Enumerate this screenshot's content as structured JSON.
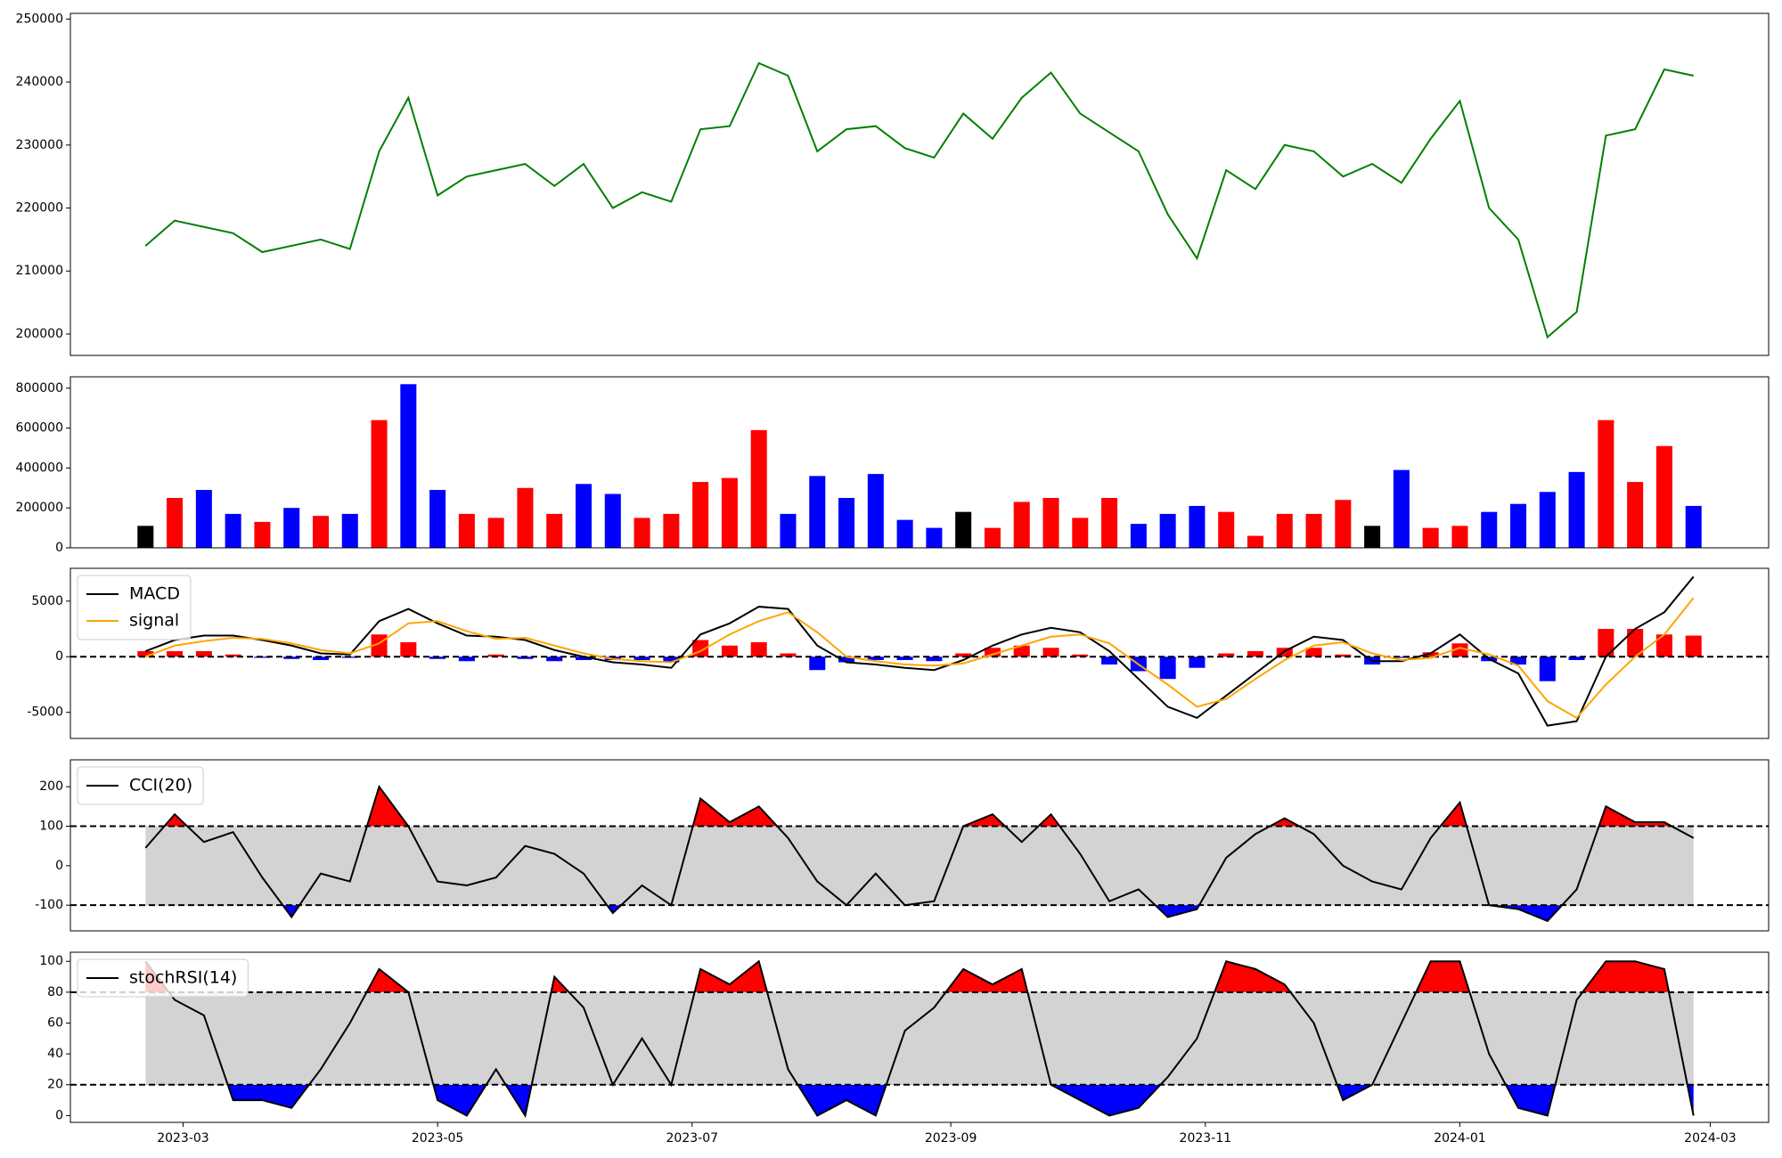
{
  "chart_data": [
    {
      "type": "line",
      "x": [
        "2023-02-20",
        "2023-02-27",
        "2023-03-06",
        "2023-03-13",
        "2023-03-20",
        "2023-03-27",
        "2023-04-03",
        "2023-04-10",
        "2023-04-17",
        "2023-04-24",
        "2023-05-01",
        "2023-05-08",
        "2023-05-15",
        "2023-05-22",
        "2023-05-29",
        "2023-06-05",
        "2023-06-12",
        "2023-06-19",
        "2023-06-26",
        "2023-07-03",
        "2023-07-10",
        "2023-07-17",
        "2023-07-24",
        "2023-07-31",
        "2023-08-07",
        "2023-08-14",
        "2023-08-21",
        "2023-08-28",
        "2023-09-04",
        "2023-09-11",
        "2023-09-18",
        "2023-09-25",
        "2023-10-02",
        "2023-10-09",
        "2023-10-16",
        "2023-10-23",
        "2023-10-30",
        "2023-11-06",
        "2023-11-13",
        "2023-11-20",
        "2023-11-27",
        "2023-12-04",
        "2023-12-11",
        "2023-12-18",
        "2023-12-25",
        "2024-01-01",
        "2024-01-08",
        "2024-01-15",
        "2024-01-22",
        "2024-01-29",
        "2024-02-05",
        "2024-02-12",
        "2024-02-19",
        "2024-02-26"
      ],
      "series": [
        {
          "color": "green",
          "values": [
            214000,
            218000,
            217000,
            216000,
            213000,
            214000,
            215000,
            213500,
            229000,
            237500,
            222000,
            225000,
            226000,
            227000,
            223500,
            227000,
            220000,
            222500,
            221000,
            232500,
            233000,
            243000,
            241000,
            229000,
            232500,
            233000,
            229500,
            228000,
            235000,
            231000,
            237500,
            241500,
            235000,
            232000,
            229000,
            219000,
            212000,
            226000,
            223000,
            230000,
            229000,
            225000,
            227000,
            224000,
            231000,
            237000,
            220000,
            215000,
            199500,
            203500,
            231500,
            232500,
            242000,
            241000
          ]
        }
      ],
      "xlim": [
        "2023-02-02",
        "2024-03-15"
      ],
      "ylim": [
        196600,
        250900
      ],
      "yticks": [
        200000,
        210000,
        220000,
        230000,
        240000,
        250000
      ]
    },
    {
      "type": "bar",
      "x": [
        "2023-02-20",
        "2023-02-27",
        "2023-03-06",
        "2023-03-13",
        "2023-03-20",
        "2023-03-27",
        "2023-04-03",
        "2023-04-10",
        "2023-04-17",
        "2023-04-24",
        "2023-05-01",
        "2023-05-08",
        "2023-05-15",
        "2023-05-22",
        "2023-05-29",
        "2023-06-05",
        "2023-06-12",
        "2023-06-19",
        "2023-06-26",
        "2023-07-03",
        "2023-07-10",
        "2023-07-17",
        "2023-07-24",
        "2023-07-31",
        "2023-08-07",
        "2023-08-14",
        "2023-08-21",
        "2023-08-28",
        "2023-09-04",
        "2023-09-11",
        "2023-09-18",
        "2023-09-25",
        "2023-10-02",
        "2023-10-09",
        "2023-10-16",
        "2023-10-23",
        "2023-10-30",
        "2023-11-06",
        "2023-11-13",
        "2023-11-20",
        "2023-11-27",
        "2023-12-04",
        "2023-12-11",
        "2023-12-18",
        "2023-12-25",
        "2024-01-01",
        "2024-01-08",
        "2024-01-15",
        "2024-01-22",
        "2024-01-29",
        "2024-02-05",
        "2024-02-12",
        "2024-02-19",
        "2024-02-26"
      ],
      "series": [
        {
          "values": [
            110000,
            250000,
            290000,
            170000,
            130000,
            200000,
            160000,
            170000,
            640000,
            820000,
            290000,
            170000,
            150000,
            300000,
            170000,
            320000,
            270000,
            150000,
            170000,
            330000,
            350000,
            590000,
            170000,
            360000,
            250000,
            370000,
            140000,
            100000,
            180000,
            100000,
            230000,
            250000,
            150000,
            250000,
            120000,
            170000,
            210000,
            180000,
            60000,
            170000,
            170000,
            240000,
            110000,
            390000,
            100000,
            110000,
            180000,
            220000,
            280000,
            380000,
            640000,
            330000,
            510000,
            210000
          ],
          "colors": [
            "black",
            "red",
            "blue",
            "blue",
            "red",
            "blue",
            "red",
            "blue",
            "red",
            "blue",
            "blue",
            "red",
            "red",
            "red",
            "red",
            "blue",
            "blue",
            "red",
            "red",
            "red",
            "red",
            "red",
            "blue",
            "blue",
            "blue",
            "blue",
            "blue",
            "blue",
            "black",
            "red",
            "red",
            "red",
            "red",
            "red",
            "blue",
            "blue",
            "blue",
            "red",
            "red",
            "red",
            "red",
            "red",
            "black",
            "blue",
            "red",
            "red",
            "blue",
            "blue",
            "blue",
            "blue",
            "red",
            "red",
            "red",
            "blue"
          ]
        }
      ],
      "xlim": [
        "2023-02-02",
        "2024-03-15"
      ],
      "ylim": [
        0,
        857000
      ],
      "yticks": [
        0,
        200000,
        400000,
        600000,
        800000
      ]
    },
    {
      "type": "line",
      "x": [
        "2023-02-20",
        "2023-02-27",
        "2023-03-06",
        "2023-03-13",
        "2023-03-20",
        "2023-03-27",
        "2023-04-03",
        "2023-04-10",
        "2023-04-17",
        "2023-04-24",
        "2023-05-01",
        "2023-05-08",
        "2023-05-15",
        "2023-05-22",
        "2023-05-29",
        "2023-06-05",
        "2023-06-12",
        "2023-06-19",
        "2023-06-26",
        "2023-07-03",
        "2023-07-10",
        "2023-07-17",
        "2023-07-24",
        "2023-07-31",
        "2023-08-07",
        "2023-08-14",
        "2023-08-21",
        "2023-08-28",
        "2023-09-04",
        "2023-09-11",
        "2023-09-18",
        "2023-09-25",
        "2023-10-02",
        "2023-10-09",
        "2023-10-16",
        "2023-10-23",
        "2023-10-30",
        "2023-11-06",
        "2023-11-13",
        "2023-11-20",
        "2023-11-27",
        "2023-12-04",
        "2023-12-11",
        "2023-12-18",
        "2023-12-25",
        "2024-01-01",
        "2024-01-08",
        "2024-01-15",
        "2024-01-22",
        "2024-01-29",
        "2024-02-05",
        "2024-02-12",
        "2024-02-19",
        "2024-02-26"
      ],
      "series": [
        {
          "style": "bar",
          "color_up": "red",
          "color_down": "blue",
          "values": [
            500,
            500,
            500,
            200,
            -100,
            -200,
            -300,
            -100,
            2000,
            1300,
            -200,
            -400,
            200,
            -200,
            -400,
            -300,
            -300,
            -300,
            -500,
            1500,
            1000,
            1300,
            300,
            -1200,
            -500,
            -300,
            -300,
            -400,
            300,
            800,
            1000,
            800,
            200,
            -700,
            -1300,
            -2000,
            -1000,
            300,
            500,
            800,
            800,
            200,
            -700,
            -100,
            400,
            1200,
            -400,
            -700,
            -2200,
            -300,
            2500,
            2500,
            2000,
            1900
          ]
        },
        {
          "name": "MACD",
          "color": "black",
          "values": [
            500,
            1500,
            1900,
            1900,
            1500,
            1000,
            300,
            200,
            3200,
            4300,
            3000,
            1900,
            1800,
            1500,
            600,
            0,
            -500,
            -700,
            -1000,
            2000,
            3000,
            4500,
            4300,
            1000,
            -500,
            -700,
            -1000,
            -1200,
            -300,
            1000,
            2000,
            2600,
            2200,
            500,
            -2000,
            -4500,
            -5500,
            -3500,
            -1500,
            500,
            1800,
            1500,
            -400,
            -400,
            300,
            2000,
            -200,
            -1500,
            -6200,
            -5800,
            0,
            2500,
            4000,
            7200
          ]
        },
        {
          "name": "signal",
          "color": "orange",
          "values": [
            0,
            1000,
            1400,
            1700,
            1600,
            1200,
            600,
            300,
            1200,
            3000,
            3200,
            2300,
            1600,
            1700,
            1000,
            300,
            -200,
            -400,
            -500,
            500,
            2000,
            3200,
            4000,
            2200,
            0,
            -400,
            -700,
            -800,
            -600,
            200,
            1000,
            1800,
            2000,
            1200,
            -700,
            -2500,
            -4500,
            -3800,
            -2000,
            -300,
            1000,
            1300,
            300,
            -300,
            -100,
            800,
            200,
            -800,
            -4000,
            -5500,
            -2500,
            0,
            2000,
            5300
          ]
        }
      ],
      "hlines": [
        0
      ],
      "legend": "upper left",
      "xlim": [
        "2023-02-02",
        "2024-03-15"
      ],
      "ylim": [
        -7350,
        7950
      ],
      "yticks": [
        -5000,
        0,
        5000
      ]
    },
    {
      "type": "line",
      "x": [
        "2023-02-20",
        "2023-02-27",
        "2023-03-06",
        "2023-03-13",
        "2023-03-20",
        "2023-03-27",
        "2023-04-03",
        "2023-04-10",
        "2023-04-17",
        "2023-04-24",
        "2023-05-01",
        "2023-05-08",
        "2023-05-15",
        "2023-05-22",
        "2023-05-29",
        "2023-06-05",
        "2023-06-12",
        "2023-06-19",
        "2023-06-26",
        "2023-07-03",
        "2023-07-10",
        "2023-07-17",
        "2023-07-24",
        "2023-07-31",
        "2023-08-07",
        "2023-08-14",
        "2023-08-21",
        "2023-08-28",
        "2023-09-04",
        "2023-09-11",
        "2023-09-18",
        "2023-09-25",
        "2023-10-02",
        "2023-10-09",
        "2023-10-16",
        "2023-10-23",
        "2023-10-30",
        "2023-11-06",
        "2023-11-13",
        "2023-11-20",
        "2023-11-27",
        "2023-12-04",
        "2023-12-11",
        "2023-12-18",
        "2023-12-25",
        "2024-01-01",
        "2024-01-08",
        "2024-01-15",
        "2024-01-22",
        "2024-01-29",
        "2024-02-05",
        "2024-02-12",
        "2024-02-19",
        "2024-02-26"
      ],
      "series": [
        {
          "name": "CCI(20)",
          "color": "black",
          "values": [
            45,
            130,
            60,
            85,
            -30,
            -130,
            -20,
            -40,
            200,
            100,
            -40,
            -50,
            -30,
            50,
            30,
            -20,
            -120,
            -50,
            -100,
            170,
            110,
            150,
            70,
            -40,
            -100,
            -20,
            -100,
            -90,
            100,
            130,
            60,
            130,
            30,
            -90,
            -60,
            -130,
            -110,
            20,
            80,
            120,
            80,
            0,
            -40,
            -60,
            70,
            160,
            -100,
            -110,
            -140,
            -60,
            150,
            110,
            110,
            70
          ]
        }
      ],
      "hlines": [
        -100,
        100
      ],
      "band_fill": "lightgray",
      "above_color": "red",
      "below_color": "blue",
      "legend": "upper left",
      "xlim": [
        "2023-02-02",
        "2024-03-15"
      ],
      "ylim": [
        -165,
        268
      ],
      "yticks": [
        -100,
        0,
        100,
        200
      ]
    },
    {
      "type": "line",
      "x": [
        "2023-02-20",
        "2023-02-27",
        "2023-03-06",
        "2023-03-13",
        "2023-03-20",
        "2023-03-27",
        "2023-04-03",
        "2023-04-10",
        "2023-04-17",
        "2023-04-24",
        "2023-05-01",
        "2023-05-08",
        "2023-05-15",
        "2023-05-22",
        "2023-05-29",
        "2023-06-05",
        "2023-06-12",
        "2023-06-19",
        "2023-06-26",
        "2023-07-03",
        "2023-07-10",
        "2023-07-17",
        "2023-07-24",
        "2023-07-31",
        "2023-08-07",
        "2023-08-14",
        "2023-08-21",
        "2023-08-28",
        "2023-09-04",
        "2023-09-11",
        "2023-09-18",
        "2023-09-25",
        "2023-10-02",
        "2023-10-09",
        "2023-10-16",
        "2023-10-23",
        "2023-10-30",
        "2023-11-06",
        "2023-11-13",
        "2023-11-20",
        "2023-11-27",
        "2023-12-04",
        "2023-12-11",
        "2023-12-18",
        "2023-12-25",
        "2024-01-01",
        "2024-01-08",
        "2024-01-15",
        "2024-01-22",
        "2024-01-29",
        "2024-02-05",
        "2024-02-12",
        "2024-02-19",
        "2024-02-26"
      ],
      "series": [
        {
          "name": "stochRSI(14)",
          "color": "black",
          "values": [
            100,
            75,
            65,
            10,
            10,
            5,
            30,
            60,
            95,
            80,
            10,
            0,
            30,
            0,
            90,
            70,
            20,
            50,
            20,
            95,
            85,
            100,
            30,
            0,
            10,
            0,
            55,
            70,
            95,
            85,
            95,
            20,
            10,
            0,
            5,
            25,
            50,
            100,
            95,
            85,
            60,
            10,
            20,
            60,
            100,
            100,
            40,
            5,
            0,
            75,
            100,
            100,
            95,
            0
          ]
        }
      ],
      "hlines": [
        20,
        80
      ],
      "band_fill": "lightgray",
      "above_color": "red",
      "below_color": "blue",
      "legend": "upper left",
      "xlim": [
        "2023-02-02",
        "2024-03-15"
      ],
      "ylim": [
        -4.4,
        105.9
      ],
      "yticks": [
        0,
        20,
        40,
        60,
        80,
        100
      ],
      "xticks": [
        {
          "value": "2023-03-01",
          "label": "2023-03"
        },
        {
          "value": "2023-05-01",
          "label": "2023-05"
        },
        {
          "value": "2023-07-01",
          "label": "2023-07"
        },
        {
          "value": "2023-09-01",
          "label": "2023-09"
        },
        {
          "value": "2023-11-01",
          "label": "2023-11"
        },
        {
          "value": "2024-01-01",
          "label": "2024-01"
        },
        {
          "value": "2024-03-01",
          "label": "2024-03"
        }
      ]
    }
  ]
}
